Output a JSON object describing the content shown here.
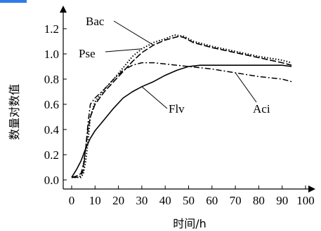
{
  "chart_data": {
    "type": "line",
    "title": "",
    "xlabel": "时间/h",
    "ylabel": "数量对数值",
    "xlim": [
      0,
      100
    ],
    "ylim": [
      0,
      1.2
    ],
    "xticks": [
      "0",
      "10",
      "20",
      "30",
      "40",
      "50",
      "60",
      "70",
      "80",
      "90",
      "100"
    ],
    "yticks": [
      "0.0",
      "0.2",
      "0.4",
      "0.6",
      "0.8",
      "1.0",
      "1.2"
    ],
    "grid": false,
    "legend": "inline labels",
    "series": [
      {
        "name": "Bac",
        "style": "long-dash",
        "x": [
          0,
          2,
          4,
          5,
          6,
          7,
          8,
          10,
          14,
          18,
          22,
          26,
          30,
          35,
          40,
          46,
          48,
          52,
          60,
          70,
          80,
          90,
          94
        ],
        "y": [
          0.02,
          0.03,
          0.05,
          0.12,
          0.25,
          0.4,
          0.5,
          0.6,
          0.7,
          0.78,
          0.86,
          0.94,
          1.01,
          1.07,
          1.11,
          1.14,
          1.13,
          1.09,
          1.05,
          1.01,
          0.97,
          0.93,
          0.91
        ]
      },
      {
        "name": "Pse",
        "style": "dotted",
        "x": [
          0,
          2,
          4,
          5,
          6,
          7,
          8,
          10,
          14,
          18,
          22,
          26,
          30,
          35,
          40,
          44,
          48,
          52,
          60,
          70,
          80,
          90,
          94
        ],
        "y": [
          0.02,
          0.02,
          0.02,
          0.05,
          0.15,
          0.3,
          0.5,
          0.62,
          0.72,
          0.8,
          0.89,
          0.98,
          1.04,
          1.09,
          1.12,
          1.15,
          1.14,
          1.1,
          1.06,
          1.02,
          0.98,
          0.95,
          0.93
        ]
      },
      {
        "name": "Aci",
        "style": "dash-dot",
        "x": [
          0,
          2,
          4,
          5,
          6,
          7,
          8,
          10,
          14,
          18,
          22,
          26,
          30,
          35,
          40,
          50,
          60,
          70,
          80,
          90,
          94
        ],
        "y": [
          0.02,
          0.02,
          0.03,
          0.08,
          0.25,
          0.45,
          0.6,
          0.65,
          0.72,
          0.8,
          0.87,
          0.91,
          0.93,
          0.93,
          0.92,
          0.9,
          0.88,
          0.85,
          0.82,
          0.8,
          0.78
        ]
      },
      {
        "name": "Flv",
        "style": "solid",
        "x": [
          0,
          2,
          4,
          6,
          8,
          10,
          14,
          18,
          22,
          26,
          30,
          35,
          40,
          45,
          50,
          55,
          60,
          70,
          80,
          90,
          94
        ],
        "y": [
          0.02,
          0.08,
          0.15,
          0.25,
          0.33,
          0.39,
          0.48,
          0.57,
          0.65,
          0.7,
          0.74,
          0.78,
          0.83,
          0.87,
          0.9,
          0.91,
          0.91,
          0.91,
          0.91,
          0.91,
          0.9
        ]
      }
    ]
  },
  "colors": {
    "line": "#000000",
    "accent": "#2f7bea"
  }
}
